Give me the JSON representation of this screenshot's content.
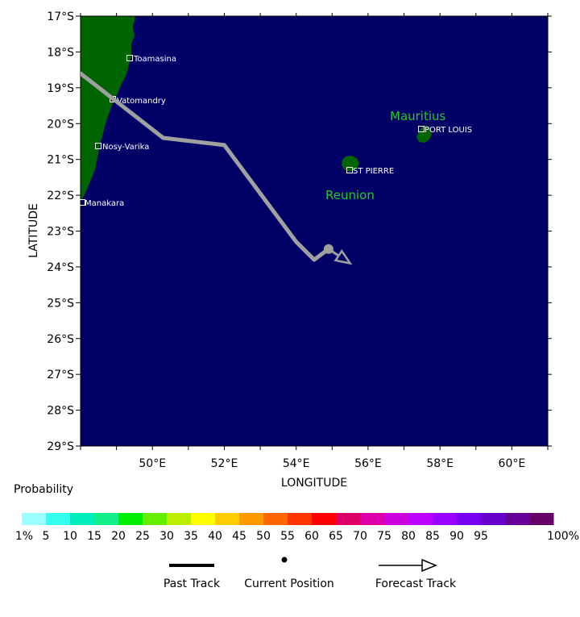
{
  "map": {
    "axes": {
      "xlabel": "LONGITUDE",
      "ylabel": "LATITUDE",
      "lon_ticks": [
        "50°E",
        "52°E",
        "54°E",
        "56°E",
        "58°E",
        "60°E"
      ],
      "lat_ticks": [
        "17°S",
        "18°S",
        "19°S",
        "20°S",
        "21°S",
        "22°S",
        "23°S",
        "24°S",
        "25°S",
        "26°S",
        "27°S",
        "28°S",
        "29°S"
      ]
    },
    "colors": {
      "ocean": "#000066",
      "land": "#006400",
      "track": "#a0a0a0",
      "island_label": "#22cc22",
      "city_label": "#ffffff"
    },
    "cities": {
      "toamasina": "Toamasina",
      "vatomandry": "Vatomandry",
      "nosy_varika": "Nosy-Varika",
      "manakara": "Manakara",
      "port_louis": "PORT LOUIS",
      "st_pierre": "ST PIERRE"
    },
    "islands": {
      "mauritius": "Mauritius",
      "reunion": "Reunion"
    },
    "track": {
      "past_points": [
        [
          48.0,
          -18.6
        ],
        [
          50.3,
          -20.4
        ],
        [
          52.0,
          -20.6
        ],
        [
          54.0,
          -23.3
        ],
        [
          54.5,
          -23.8
        ],
        [
          54.9,
          -23.5
        ]
      ],
      "current_position": [
        54.9,
        -23.5
      ],
      "forecast_end": [
        55.5,
        -23.9
      ]
    }
  },
  "legend": {
    "probability_title": "Probability",
    "colors": [
      "#99ffff",
      "#33ffee",
      "#00eebb",
      "#11ee88",
      "#00ee00",
      "#66ee00",
      "#bbee00",
      "#ffff00",
      "#ffcc00",
      "#ff9900",
      "#ff6600",
      "#ff3300",
      "#ff0000",
      "#dd0066",
      "#dd00aa",
      "#cc00dd",
      "#bb00ff",
      "#9900ff",
      "#7700ee",
      "#6600cc",
      "#660099",
      "#660066"
    ],
    "labels": [
      "1%",
      "5",
      "10",
      "15",
      "20",
      "25",
      "30",
      "35",
      "40",
      "45",
      "50",
      "55",
      "60",
      "65",
      "70",
      "75",
      "80",
      "85",
      "90",
      "95",
      "100%"
    ],
    "past_track": "Past Track",
    "current_position": "Current Position",
    "forecast_track": "Forecast Track"
  }
}
